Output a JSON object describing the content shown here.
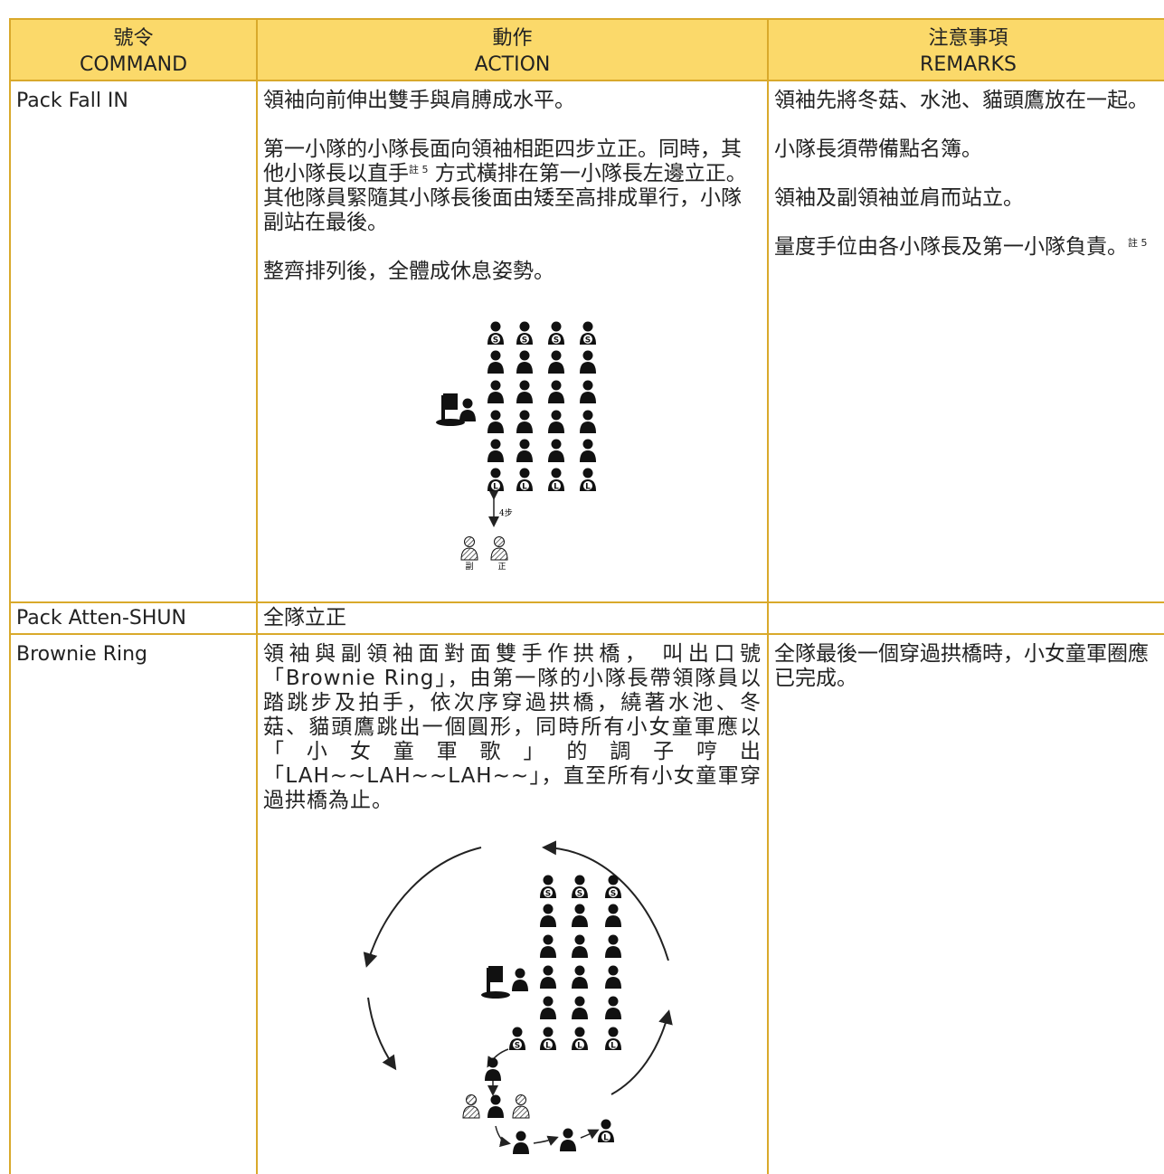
{
  "table": {
    "header": [
      {
        "zh": "號令",
        "en": "COMMAND"
      },
      {
        "zh": "動作",
        "en": "ACTION"
      },
      {
        "zh": "注意事項",
        "en": "REMARKS"
      }
    ],
    "rows": [
      {
        "command": "Pack Fall IN",
        "action": [
          "領袖向前伸出雙手與肩膊成水平。",
          {
            "before": "第一小隊的小隊長面向領袖相距四步立正。同時，其他小隊長以直手",
            "note": "註 5",
            "after": " 方式橫排在第一小隊長左邊立正。其他隊員緊隨其小隊長後面由矮至高排成單行，小隊副站在最後。"
          },
          "整齊排列後，全體成休息姿勢。"
        ],
        "remarks": [
          "領袖先將冬菇、水池、貓頭鷹放在一起。",
          "小隊長須帶備點名簿。",
          "領袖及副領袖並肩而站立。",
          {
            "before": "量度手位由各小隊長及第一小隊負責。",
            "note": "註 5"
          }
        ]
      },
      {
        "command": "Pack Atten-SHUN",
        "action": [
          "全隊立正"
        ],
        "remarks": []
      },
      {
        "command": "Brownie Ring",
        "action": [
          "領袖與副領袖面對面雙手作拱橋， 叫出口號「Brownie Ring」，由第一隊的小隊長帶領隊員以踏跳步及拍手，依次序穿過拱橋，繞著水池、冬菇、貓頭鷹跳出一個圓形，同時所有小女童軍應以「小女童軍歌」的調子哼出「LAH~~LAH~~LAH~~」，直至所有小女童軍穿過拱橋為止。"
        ],
        "remarks": [
          "全隊最後一個穿過拱橋時，小女童軍圈應已完成。"
        ]
      }
    ]
  },
  "diagrams": {
    "second_mark": "S",
    "leader_mark": "L",
    "step": "4步",
    "deputy": "副",
    "leader": "正"
  }
}
